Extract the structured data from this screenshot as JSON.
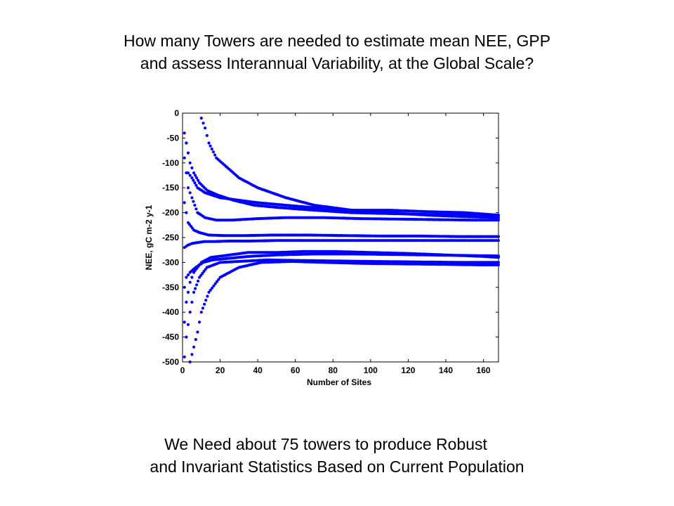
{
  "slide": {
    "title_line1": "How many Towers are needed to estimate mean NEE, GPP",
    "title_line2": "and assess Interannual Variability, at the Global Scale?",
    "footer_line1": "We Need about 75 towers to produce Robust",
    "footer_line2": "and Invariant Statistics Based on Current Population"
  },
  "chart_data": {
    "type": "scatter",
    "title": "",
    "xlabel": "Number of Sites",
    "ylabel": "NEE, gC m-2 y-1",
    "xlim": [
      0,
      168
    ],
    "ylim": [
      -500,
      0
    ],
    "xticks": [
      0,
      20,
      40,
      60,
      80,
      100,
      120,
      140,
      160
    ],
    "yticks": [
      0,
      -50,
      -100,
      -150,
      -200,
      -250,
      -300,
      -350,
      -400,
      -450,
      -500
    ],
    "xtick_labels": [
      "0",
      "20",
      "40",
      "60",
      "80",
      "100",
      "120",
      "140",
      "160"
    ],
    "ytick_labels": [
      "0",
      "-50",
      "-100",
      "-150",
      "-200",
      "-250",
      "-300",
      "-350",
      "-400",
      "-450",
      "-500"
    ],
    "grid": false,
    "marker_color": "#0000ff",
    "series": [
      {
        "x": [
          1,
          2,
          3,
          5,
          8,
          12,
          20,
          30,
          40,
          55,
          70,
          90,
          110,
          130,
          150,
          168
        ],
        "y": [
          -40,
          -60,
          -120,
          -130,
          -150,
          -160,
          -170,
          -175,
          -180,
          -185,
          -190,
          -195,
          -195,
          -198,
          -200,
          -205
        ]
      },
      {
        "x": [
          1,
          2,
          4,
          6,
          10,
          15,
          25,
          35,
          50,
          65,
          80,
          100,
          120,
          140,
          160,
          168
        ],
        "y": [
          -420,
          -380,
          -340,
          -320,
          -300,
          -290,
          -285,
          -280,
          -280,
          -278,
          -278,
          -280,
          -282,
          -285,
          -288,
          -290
        ]
      },
      {
        "x": [
          1,
          3,
          5,
          8,
          12,
          18,
          26,
          40,
          55,
          75,
          95,
          115,
          135,
          155,
          168
        ],
        "y": [
          -90,
          -150,
          -170,
          -200,
          -210,
          -215,
          -215,
          -212,
          -210,
          -210,
          -212,
          -213,
          -214,
          -215,
          -215
        ]
      },
      {
        "x": [
          1,
          2,
          4,
          7,
          11,
          16,
          24,
          35,
          50,
          70,
          90,
          110,
          130,
          150,
          168
        ],
        "y": [
          -350,
          -330,
          -320,
          -310,
          -300,
          -295,
          -292,
          -288,
          -285,
          -283,
          -283,
          -284,
          -285,
          -286,
          -287
        ]
      },
      {
        "x": [
          1,
          2,
          3,
          6,
          9,
          14,
          22,
          34,
          48,
          66,
          86,
          106,
          126,
          146,
          168
        ],
        "y": [
          -180,
          -200,
          -220,
          -235,
          -240,
          -245,
          -246,
          -246,
          -245,
          -245,
          -246,
          -247,
          -247,
          -248,
          -248
        ]
      },
      {
        "x": [
          1,
          2,
          4,
          6,
          9,
          13,
          20,
          30,
          45,
          60,
          80,
          100,
          125,
          150,
          168
        ],
        "y": [
          -490,
          -450,
          -400,
          -360,
          -330,
          -310,
          -300,
          -298,
          -295,
          -296,
          -297,
          -298,
          -299,
          -300,
          -300
        ]
      },
      {
        "x": [
          2,
          4,
          6,
          9,
          13,
          19,
          27,
          38,
          52,
          70,
          90,
          112,
          135,
          158,
          168
        ],
        "y": [
          -60,
          -100,
          -120,
          -140,
          -155,
          -165,
          -175,
          -185,
          -190,
          -195,
          -200,
          -202,
          -204,
          -205,
          -206
        ]
      },
      {
        "x": [
          1,
          3,
          5,
          8,
          12,
          17,
          25,
          36,
          50,
          68,
          88,
          108,
          128,
          148,
          168
        ],
        "y": [
          -270,
          -265,
          -262,
          -260,
          -258,
          -258,
          -257,
          -257,
          -256,
          -256,
          -256,
          -256,
          -256,
          -256,
          -256
        ]
      },
      {
        "x": [
          4,
          6,
          8,
          10,
          14,
          20,
          30,
          42,
          58,
          76,
          96,
          118,
          140,
          160,
          168
        ],
        "y": [
          -500,
          -470,
          -440,
          -400,
          -360,
          -330,
          -310,
          -300,
          -298,
          -300,
          -302,
          -303,
          -304,
          -305,
          -305
        ]
      },
      {
        "x": [
          10,
          12,
          14,
          18,
          24,
          30,
          40,
          55,
          70,
          90,
          110,
          130,
          150,
          168
        ],
        "y": [
          -10,
          -30,
          -60,
          -90,
          -110,
          -130,
          -150,
          -170,
          -185,
          -195,
          -200,
          -205,
          -208,
          -210
        ]
      }
    ]
  }
}
